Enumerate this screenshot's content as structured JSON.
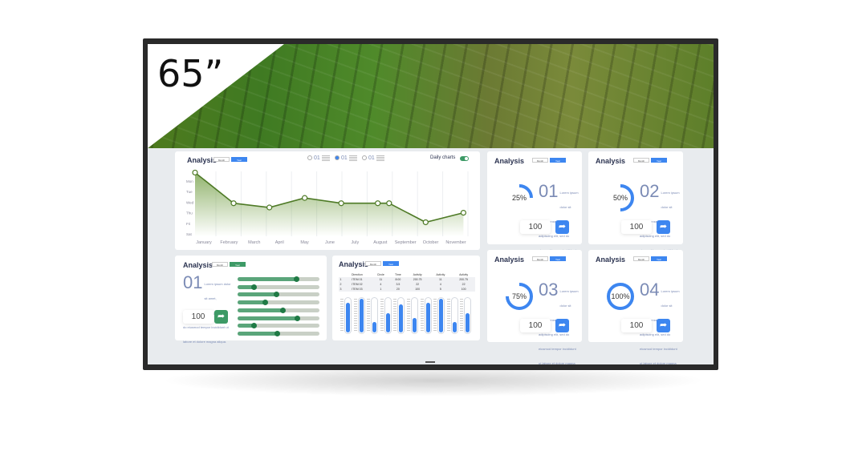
{
  "badge": {
    "size": "65”"
  },
  "line_card": {
    "title": "Analysis",
    "toggle": [
      "Month",
      "Year"
    ],
    "radios": [
      {
        "num": "01",
        "selected": false
      },
      {
        "num": "01",
        "selected": true
      },
      {
        "num": "01",
        "selected": false
      }
    ],
    "daily_label": "Daily charts",
    "daily_on": true
  },
  "chart_data": {
    "type": "line",
    "categories": [
      "January",
      "February",
      "March",
      "April",
      "May",
      "June",
      "July",
      "August",
      "September",
      "October",
      "November"
    ],
    "y_tick_labels": [
      "Mon",
      "Tue",
      "Wed",
      "Thu",
      "Fri",
      "Sat"
    ],
    "x": [
      -0.35,
      1.18,
      2.6,
      4.0,
      5.45,
      6.9,
      7.35,
      8.8,
      10.3
    ],
    "y": [
      -0.8,
      2.1,
      2.5,
      1.6,
      2.1,
      2.1,
      2.1,
      3.9,
      3.0
    ],
    "grid": true,
    "color": "#4e7a26"
  },
  "slider_card": {
    "title": "Analysis",
    "toggle": [
      "Month",
      "Year"
    ],
    "num": "01",
    "lorem": "Lorem ipsum dolor sit amet, consectetur adipiscing elit, sed do eiusmod tempor incididunt ut labore et dolore magna aliqua.",
    "value": "100",
    "sliders": [
      0.72,
      0.2,
      0.47,
      0.33,
      0.55,
      0.73,
      0.2,
      0.48
    ]
  },
  "table_card": {
    "title": "Analysis",
    "toggle": [
      "Month",
      "Year"
    ],
    "headers": [
      "",
      "Direction",
      "Circle",
      "Time",
      "Activity",
      "Activity",
      "Activity"
    ],
    "rows": [
      [
        "1",
        "ITEM 01",
        "11",
        "8:00",
        "200.75",
        "11",
        "200.75"
      ],
      [
        "2",
        "ITEM 02",
        "4",
        "3.5",
        "22",
        "4",
        "22"
      ],
      [
        "3",
        "ITEM 03",
        "1",
        "20",
        "100",
        "5",
        "100"
      ]
    ],
    "bars": [
      0.85,
      0.95,
      0.3,
      0.55,
      0.8,
      0.4,
      0.85,
      0.95,
      0.3,
      0.55
    ]
  },
  "ring_cards": [
    {
      "title": "Analysis",
      "toggle": [
        "Month",
        "Year"
      ],
      "percent": "25%",
      "fraction": 0.25,
      "num": "01",
      "value": "100"
    },
    {
      "title": "Analysis",
      "toggle": [
        "Month",
        "Year"
      ],
      "percent": "50%",
      "fraction": 0.5,
      "num": "02",
      "value": "100"
    },
    {
      "title": "Analysis",
      "toggle": [
        "Month",
        "Year"
      ],
      "percent": "75%",
      "fraction": 0.75,
      "num": "03",
      "value": "100"
    },
    {
      "title": "Analysis",
      "toggle": [
        "Month",
        "Year"
      ],
      "percent": "100%",
      "fraction": 1.0,
      "num": "04",
      "value": "100"
    }
  ],
  "lorem": "Lorem ipsum dolor sit amet, consectetur adipiscing elit, sed do eiusmod tempor incididunt ut labore et dolore magna aliqua.",
  "colors": {
    "accent": "#3d86f0",
    "green": "#3d9a66",
    "line": "#4e7a26"
  }
}
